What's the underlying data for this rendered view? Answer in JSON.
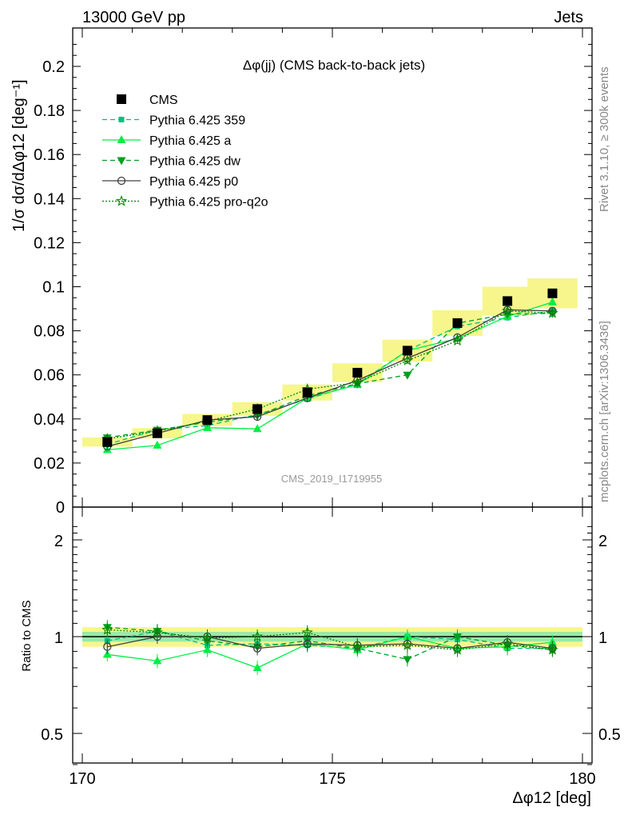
{
  "header": {
    "left": "13000 GeV pp",
    "right": "Jets",
    "title": "Δφ(jj) (CMS back-to-back jets)",
    "watermark": "CMS_2019_I1719955",
    "side_top": "Rivet 3.1.10, ≥ 300k events",
    "side_bottom": "mcplots.cern.ch [arXiv:1306.3436]"
  },
  "colors": {
    "data": "#000000",
    "p359": "#00c080",
    "pa": "#00ee44",
    "pdw": "#00a020",
    "pp0": "#404040",
    "pq2o": "#008800",
    "band_outer": "#f6f68c",
    "band_inner": "#9ce8a8"
  },
  "chart_data": [
    {
      "type": "line",
      "ylabel": "1/σ dσ/dΔφ12 [deg⁻¹]",
      "ylim": [
        0,
        0.218
      ],
      "xlim": [
        170,
        180
      ],
      "y_ticks": [
        "0",
        "0.02",
        "0.04",
        "0.06",
        "0.08",
        "0.1",
        "0.12",
        "0.14",
        "0.16",
        "0.18",
        "0.2"
      ],
      "x": [
        170.5,
        171.5,
        172.5,
        173.5,
        174.5,
        175.5,
        176.5,
        177.5,
        178.5,
        179.4
      ],
      "series": [
        {
          "name": "CMS",
          "key": "data",
          "marker": "square",
          "line": "none",
          "values": [
            0.0295,
            0.0335,
            0.0395,
            0.0445,
            0.052,
            0.061,
            0.071,
            0.0835,
            0.0935,
            0.097
          ]
        },
        {
          "name": "Pythia 6.425 359",
          "key": "p359",
          "marker": "smallsquare",
          "line": "dashed",
          "values": [
            0.0285,
            0.035,
            0.037,
            0.042,
            0.049,
            0.056,
            0.071,
            0.082,
            0.086,
            0.089
          ]
        },
        {
          "name": "Pythia 6.425 a",
          "key": "pa",
          "marker": "triangle-up",
          "line": "solid",
          "values": [
            0.026,
            0.028,
            0.036,
            0.0355,
            0.0495,
            0.0555,
            0.071,
            0.0765,
            0.0865,
            0.093
          ]
        },
        {
          "name": "Pythia 6.425 dw",
          "key": "pdw",
          "marker": "triangle-down",
          "line": "dashed",
          "values": [
            0.0315,
            0.035,
            0.0385,
            0.0415,
            0.0505,
            0.056,
            0.06,
            0.0835,
            0.0875,
            0.088
          ]
        },
        {
          "name": "Pythia 6.425 p0",
          "key": "pp0",
          "marker": "circle",
          "line": "solid",
          "values": [
            0.0275,
            0.0335,
            0.0395,
            0.041,
            0.0495,
            0.0575,
            0.0675,
            0.077,
            0.0895,
            0.089
          ]
        },
        {
          "name": "Pythia 6.425 pro-q2o",
          "key": "pq2o",
          "marker": "star",
          "line": "dotted",
          "values": [
            0.031,
            0.0345,
            0.039,
            0.0445,
            0.0535,
            0.0565,
            0.0665,
            0.0755,
            0.089,
            0.088
          ]
        }
      ]
    },
    {
      "type": "line",
      "ylabel": "Ratio to CMS",
      "xlabel": "Δφ12 [deg]",
      "ylim": [
        0.35,
        2.3
      ],
      "xlim": [
        170,
        180
      ],
      "y_ticks": [
        "0.5",
        "1",
        "2"
      ],
      "x_ticks": [
        "170",
        "175",
        "180"
      ],
      "x": [
        170.5,
        171.5,
        172.5,
        173.5,
        174.5,
        175.5,
        176.5,
        177.5,
        178.5,
        179.4
      ],
      "band_outer": 0.07,
      "band_inner": 0.035,
      "series": [
        {
          "name": "Pythia 6.425 359",
          "key": "p359",
          "values": [
            0.97,
            1.04,
            0.94,
            0.95,
            0.94,
            0.92,
            1.0,
            0.98,
            0.92,
            0.92
          ]
        },
        {
          "name": "Pythia 6.425 a",
          "key": "pa",
          "values": [
            0.88,
            0.84,
            0.91,
            0.8,
            0.95,
            0.91,
            1.0,
            0.92,
            0.93,
            0.96
          ]
        },
        {
          "name": "Pythia 6.425 dw",
          "key": "pdw",
          "values": [
            1.07,
            1.04,
            0.97,
            0.93,
            0.97,
            0.92,
            0.85,
            1.0,
            0.94,
            0.91
          ]
        },
        {
          "name": "Pythia 6.425 p0",
          "key": "pp0",
          "values": [
            0.93,
            1.0,
            1.0,
            0.92,
            0.95,
            0.94,
            0.95,
            0.92,
            0.96,
            0.92
          ]
        },
        {
          "name": "Pythia 6.425 pro-q2o",
          "key": "pq2o",
          "values": [
            1.05,
            1.03,
            0.99,
            1.0,
            1.03,
            0.93,
            0.94,
            0.91,
            0.95,
            0.91
          ]
        }
      ]
    }
  ]
}
